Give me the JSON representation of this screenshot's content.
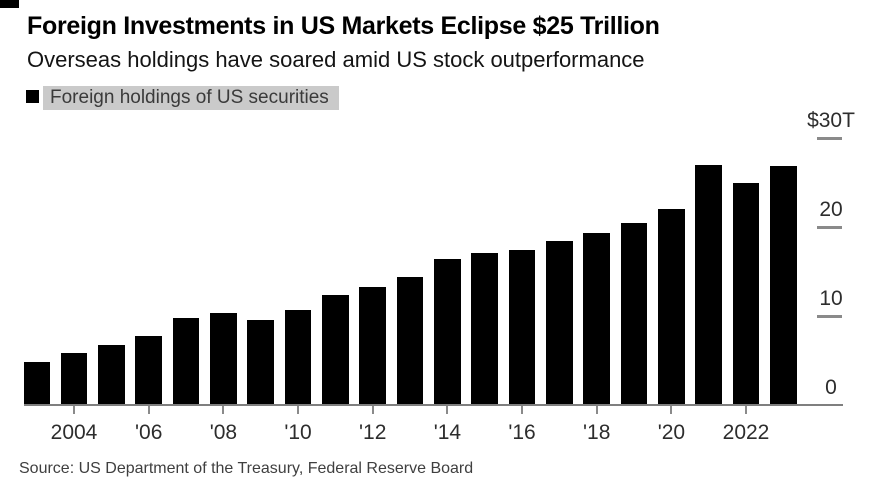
{
  "header": {
    "title": "Foreign Investments in US Markets Eclipse $25 Trillion",
    "subtitle": "Overseas holdings have soared amid US stock outperformance"
  },
  "legend": {
    "label": "Foreign holdings of US securities",
    "swatch_color": "#000000",
    "highlight_color": "#cacaca"
  },
  "source": "Source: US Department of the Treasury, Federal Reserve Board",
  "colors": {
    "bar": "#000000",
    "axis": "#7f7f7f",
    "tick_label": "#2d2d2d",
    "background": "#ffffff"
  },
  "chart_data": {
    "type": "bar",
    "title": "Foreign Investments in US Markets Eclipse $25 Trillion",
    "subtitle": "Overseas holdings have soared amid US stock outperformance",
    "series_name": "Foreign holdings of US securities",
    "unit": "trillions of US dollars",
    "categories": [
      2003,
      2004,
      2005,
      2006,
      2007,
      2008,
      2009,
      2010,
      2011,
      2012,
      2013,
      2014,
      2015,
      2016,
      2017,
      2018,
      2019,
      2020,
      2021,
      2022,
      2023
    ],
    "values": [
      4.8,
      5.9,
      6.8,
      7.8,
      9.8,
      10.3,
      9.6,
      10.7,
      12.4,
      13.3,
      14.4,
      16.4,
      17.1,
      17.4,
      18.4,
      19.4,
      20.5,
      22.0,
      27.0,
      25.0,
      26.9
    ],
    "ylim": [
      0,
      30
    ],
    "grid": false,
    "legend_position": "top-left",
    "y_axis_side": "right",
    "y_ticks": [
      {
        "value": 30,
        "label": "$30T"
      },
      {
        "value": 20,
        "label": "20"
      },
      {
        "value": 10,
        "label": "10"
      },
      {
        "value": 0,
        "label": "0"
      }
    ],
    "x_ticks": [
      {
        "year": 2004,
        "label": "2004"
      },
      {
        "year": 2006,
        "label": "'06"
      },
      {
        "year": 2008,
        "label": "'08"
      },
      {
        "year": 2010,
        "label": "'10"
      },
      {
        "year": 2012,
        "label": "'12"
      },
      {
        "year": 2014,
        "label": "'14"
      },
      {
        "year": 2016,
        "label": "'16"
      },
      {
        "year": 2018,
        "label": "'18"
      },
      {
        "year": 2020,
        "label": "'20"
      },
      {
        "year": 2022,
        "label": "2022"
      }
    ]
  }
}
